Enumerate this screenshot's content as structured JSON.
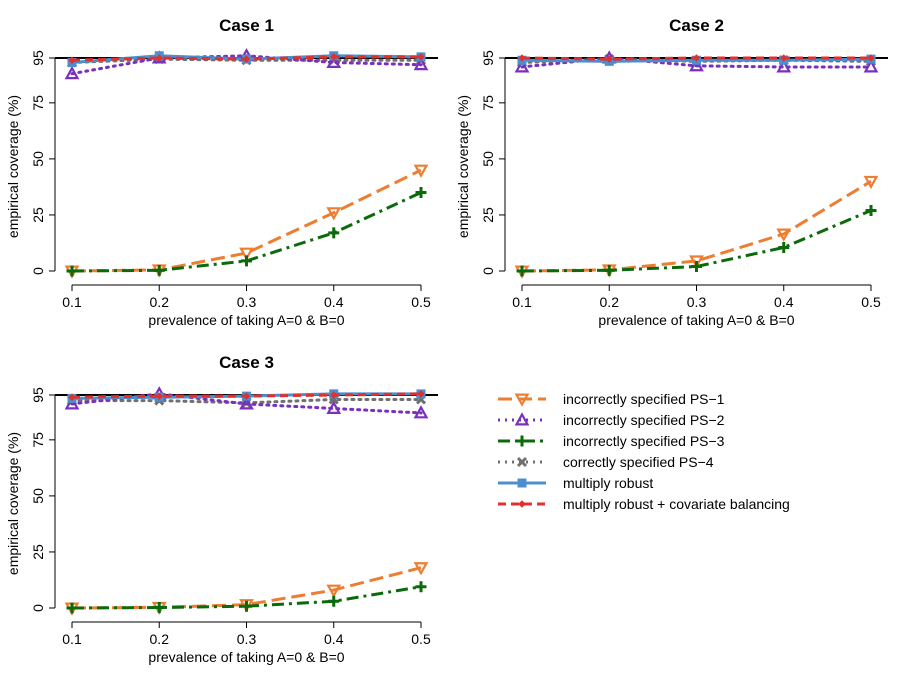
{
  "chart_data": [
    {
      "type": "line",
      "title": "Case 1",
      "xlabel": "prevalence of taking A=0 & B=0",
      "ylabel": "empirical coverage (%)",
      "x": [
        0.1,
        0.2,
        0.3,
        0.4,
        0.5
      ],
      "x_ticks": [
        "0.1",
        "0.2",
        "0.3",
        "0.4",
        "0.5"
      ],
      "y_ticks": [
        0,
        25,
        50,
        75,
        95
      ],
      "ylim": [
        0,
        100
      ],
      "reference_line": 95,
      "series": [
        {
          "name": "incorrectly specified PS-1",
          "values": [
            0,
            0.5,
            8,
            26,
            45
          ]
        },
        {
          "name": "incorrectly specified PS-2",
          "values": [
            88,
            95,
            96,
            93,
            92
          ]
        },
        {
          "name": "incorrectly specified PS-3",
          "values": [
            0,
            0.3,
            4.5,
            17,
            35
          ]
        },
        {
          "name": "correctly specified PS-4",
          "values": [
            93,
            94.5,
            94,
            94,
            94
          ]
        },
        {
          "name": "multiply robust",
          "values": [
            93,
            96,
            94.5,
            96,
            95.5
          ]
        },
        {
          "name": "multiply robust + covariate balancing",
          "values": [
            94,
            95,
            94.5,
            95.5,
            95.5
          ]
        }
      ]
    },
    {
      "type": "line",
      "title": "Case 2",
      "xlabel": "prevalence of taking A=0 & B=0",
      "ylabel": "empirical coverage (%)",
      "x": [
        0.1,
        0.2,
        0.3,
        0.4,
        0.5
      ],
      "x_ticks": [
        "0.1",
        "0.2",
        "0.3",
        "0.4",
        "0.5"
      ],
      "y_ticks": [
        0,
        25,
        50,
        75,
        95
      ],
      "ylim": [
        0,
        100
      ],
      "reference_line": 95,
      "series": [
        {
          "name": "incorrectly specified PS-1",
          "values": [
            0,
            0.5,
            4.5,
            16.5,
            40
          ]
        },
        {
          "name": "incorrectly specified PS-2",
          "values": [
            91,
            95,
            91.5,
            91,
            91
          ]
        },
        {
          "name": "incorrectly specified PS-3",
          "values": [
            0,
            0.3,
            2,
            10.5,
            27
          ]
        },
        {
          "name": "correctly specified PS-4",
          "values": [
            93,
            94.5,
            93.5,
            94,
            93.5
          ]
        },
        {
          "name": "multiply robust",
          "values": [
            94,
            93.5,
            94,
            94,
            94.5
          ]
        },
        {
          "name": "multiply robust + covariate balancing",
          "values": [
            95,
            94.5,
            95,
            95,
            95
          ]
        }
      ]
    },
    {
      "type": "line",
      "title": "Case 3",
      "xlabel": "prevalence of taking A=0 & B=0",
      "ylabel": "empirical coverage (%)",
      "x": [
        0.1,
        0.2,
        0.3,
        0.4,
        0.5
      ],
      "x_ticks": [
        "0.1",
        "0.2",
        "0.3",
        "0.4",
        "0.5"
      ],
      "y_ticks": [
        0,
        25,
        50,
        75,
        95
      ],
      "ylim": [
        0,
        100
      ],
      "reference_line": 95,
      "series": [
        {
          "name": "incorrectly specified PS-1",
          "values": [
            0,
            0.3,
            1.5,
            8,
            18
          ]
        },
        {
          "name": "incorrectly specified PS-2",
          "values": [
            91,
            95.5,
            91,
            89,
            87
          ]
        },
        {
          "name": "incorrectly specified PS-3",
          "values": [
            0,
            0.2,
            0.8,
            3,
            9.5
          ]
        },
        {
          "name": "correctly specified PS-4",
          "values": [
            92.5,
            92.5,
            91.5,
            93,
            93
          ]
        },
        {
          "name": "multiply robust",
          "values": [
            93.5,
            94,
            94.5,
            95.5,
            95.5
          ]
        },
        {
          "name": "multiply robust + covariate balancing",
          "values": [
            94,
            94.5,
            94.5,
            95,
            95.5
          ]
        }
      ]
    }
  ],
  "legend": [
    {
      "label": "incorrectly specified PS−1",
      "color": "#ED7D31",
      "marker": "triangle-down",
      "dash": "long"
    },
    {
      "label": "incorrectly specified PS−2",
      "color": "#7B2FBE",
      "marker": "triangle-up",
      "dash": "dotted"
    },
    {
      "label": "incorrectly specified PS−3",
      "color": "#0B6B0B",
      "marker": "plus",
      "dash": "dashdot"
    },
    {
      "label": "correctly specified PS−4",
      "color": "#707070",
      "marker": "cross",
      "dash": "dotted"
    },
    {
      "label": "multiply robust",
      "color": "#4C8FCF",
      "marker": "square",
      "dash": "solid"
    },
    {
      "label": "multiply robust + covariate balancing",
      "color": "#E0312F",
      "marker": "diamond",
      "dash": "dashed"
    }
  ]
}
